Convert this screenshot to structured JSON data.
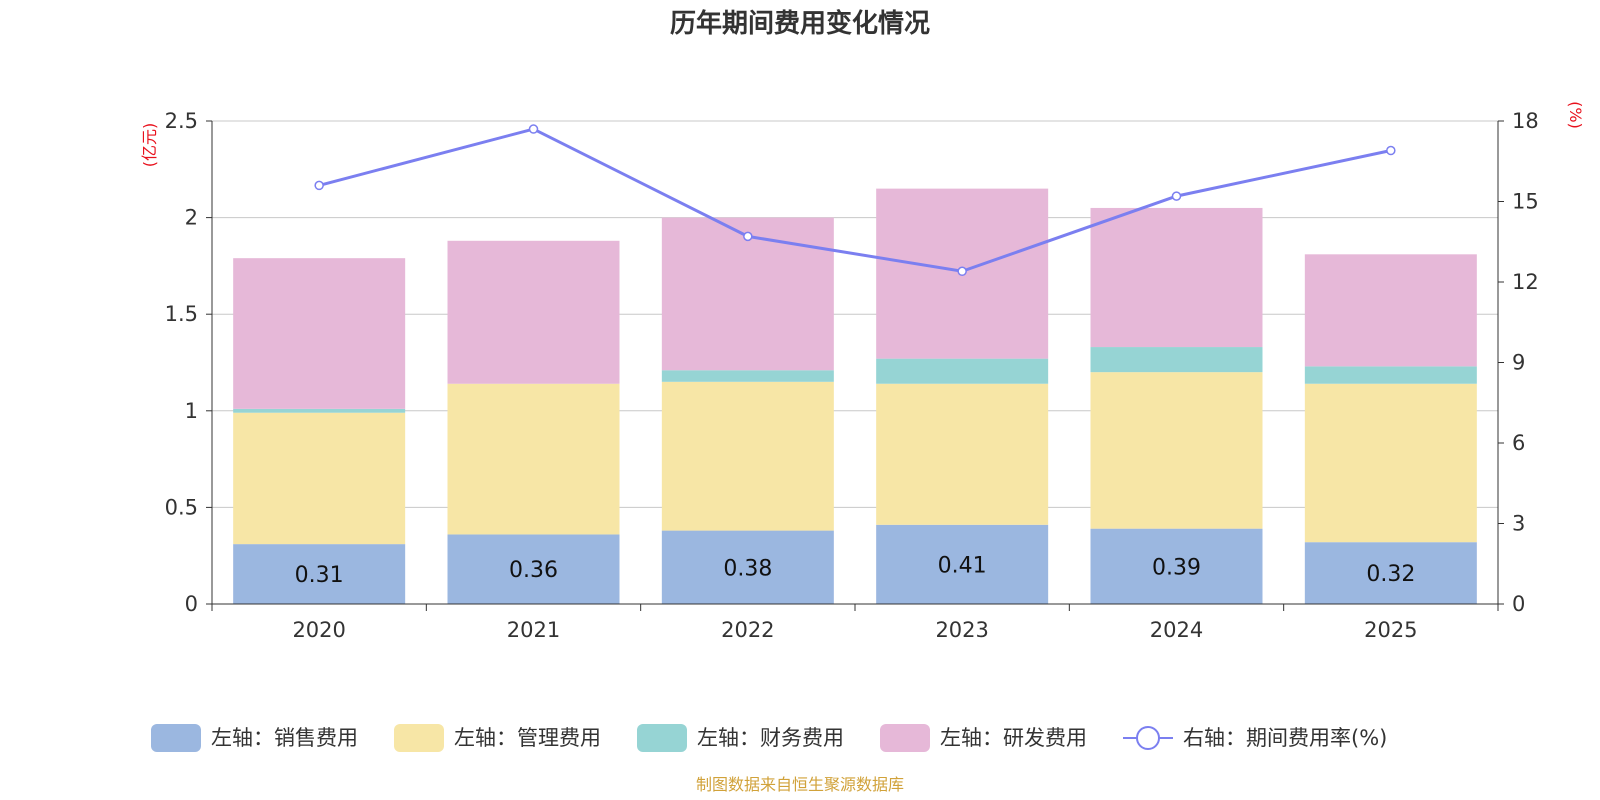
{
  "chart_data": {
    "type": "bar",
    "stacked": true,
    "title": "历年期间费用变化情况",
    "categories": [
      "2020",
      "2021",
      "2022",
      "2023",
      "2024",
      "2025"
    ],
    "left_axis": {
      "unit": "(亿元)",
      "ylim": [
        0,
        2.5
      ],
      "ticks": [
        0,
        0.5,
        1,
        1.5,
        2,
        2.5
      ],
      "tick_labels": [
        "0",
        "0.5",
        "1",
        "1.5",
        "2",
        "2.5"
      ]
    },
    "right_axis": {
      "unit": "(%)",
      "ylim": [
        0,
        18
      ],
      "ticks": [
        0,
        3,
        6,
        9,
        12,
        15,
        18
      ],
      "tick_labels": [
        "0",
        "3",
        "6",
        "9",
        "12",
        "15",
        "18"
      ]
    },
    "series": [
      {
        "name": "左轴：销售费用",
        "axis": "left",
        "color": "#9bb7e0",
        "values": [
          0.31,
          0.36,
          0.38,
          0.41,
          0.39,
          0.32
        ],
        "show_labels": true,
        "labels": [
          "0.31",
          "0.36",
          "0.38",
          "0.41",
          "0.39",
          "0.32"
        ]
      },
      {
        "name": "左轴：管理费用",
        "axis": "left",
        "color": "#f7e6a6",
        "values": [
          0.68,
          0.78,
          0.77,
          0.73,
          0.81,
          0.82
        ],
        "show_labels": false
      },
      {
        "name": "左轴：财务费用",
        "axis": "left",
        "color": "#96d4d4",
        "values": [
          0.02,
          0.0,
          0.06,
          0.13,
          0.13,
          0.09
        ],
        "show_labels": false
      },
      {
        "name": "左轴：研发费用",
        "axis": "left",
        "color": "#e6b8d8",
        "values": [
          0.78,
          0.74,
          0.79,
          0.88,
          0.72,
          0.58
        ],
        "show_labels": false
      },
      {
        "name": "右轴：期间费用率(%)",
        "axis": "right",
        "type": "line",
        "color": "#7b7ff0",
        "values": [
          15.6,
          17.7,
          13.7,
          12.4,
          15.2,
          16.9
        ]
      }
    ],
    "source": "制图数据来自恒生聚源数据库"
  }
}
